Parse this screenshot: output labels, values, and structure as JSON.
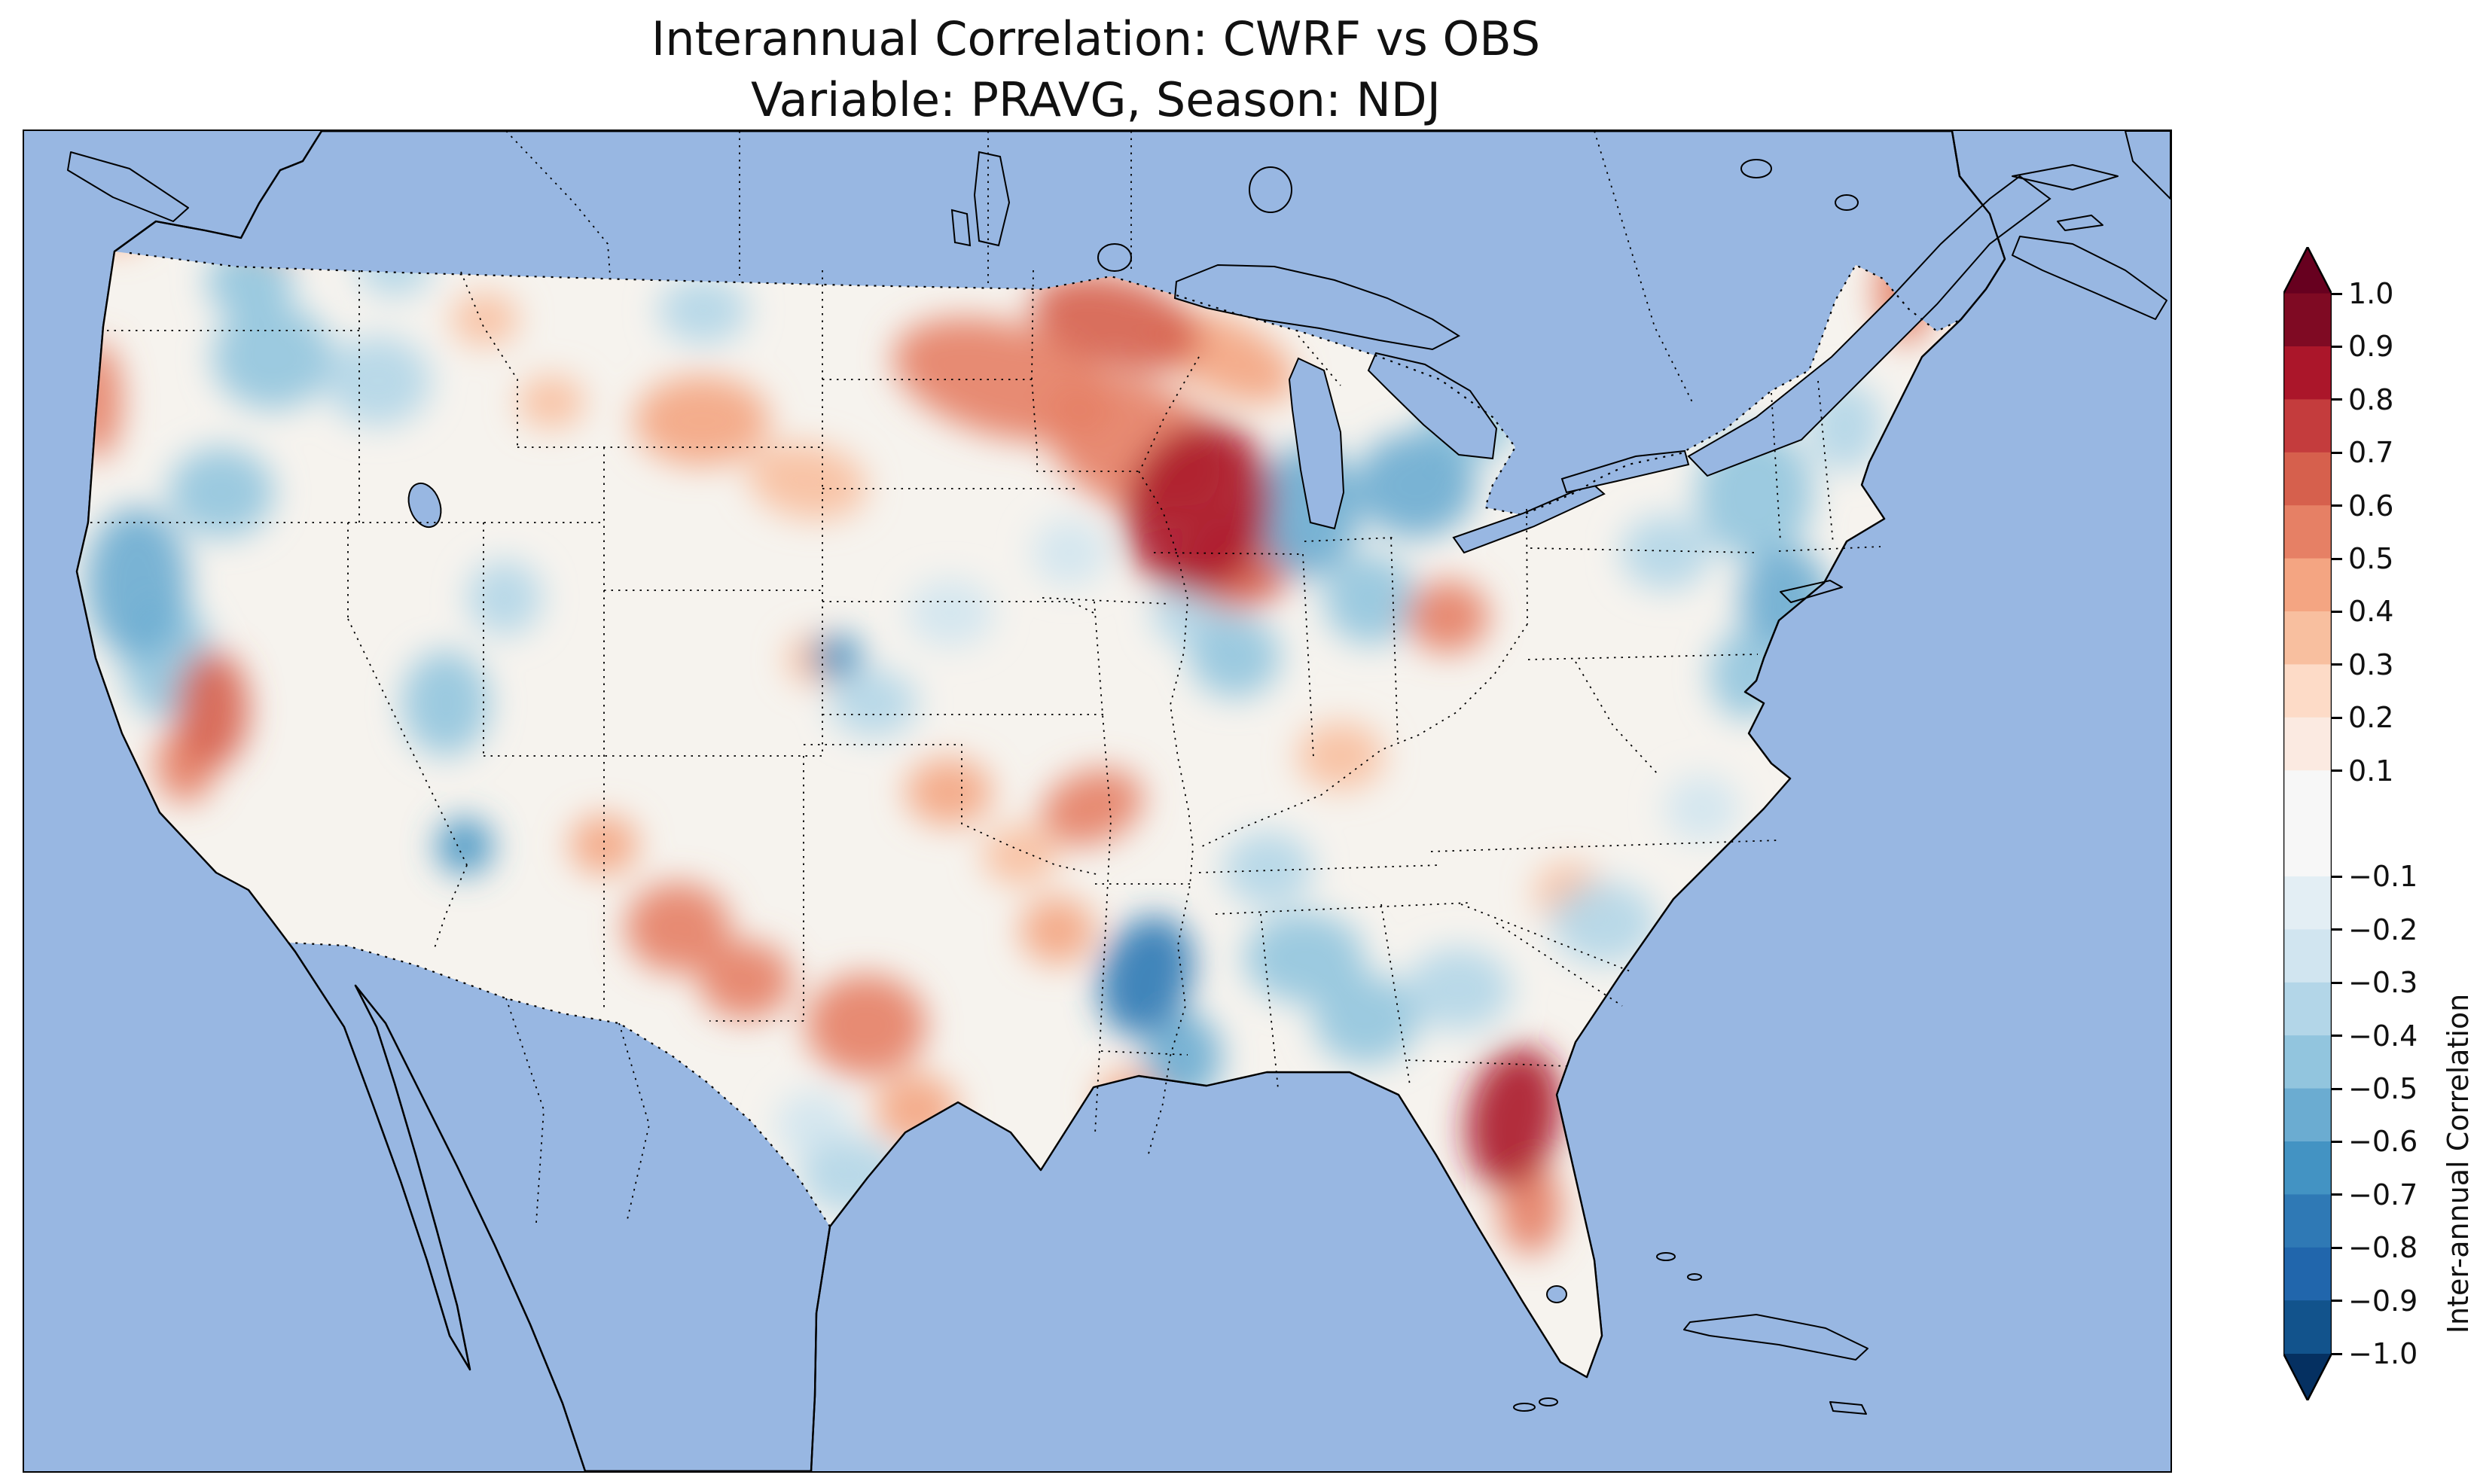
{
  "title": {
    "line1": "Interannual Correlation: CWRF vs OBS",
    "line2": "Variable: PRAVG, Season: NDJ"
  },
  "map": {
    "ocean_color": "#98b7e2",
    "land_color": "#f0efdb",
    "field_base_color": "#f6f3ee",
    "border_style": "dotted black (state / national boundaries)",
    "coastline_style": "solid black"
  },
  "colorbar": {
    "label": "Inter-annual Correlation",
    "ticks": [
      "1.0",
      "0.9",
      "0.8",
      "0.7",
      "0.6",
      "0.5",
      "0.4",
      "0.3",
      "0.2",
      "0.1",
      "−0.1",
      "−0.2",
      "−0.3",
      "−0.4",
      "−0.5",
      "−0.6",
      "−0.7",
      "−0.8",
      "−0.9",
      "−1.0"
    ],
    "tick_values": [
      1.0,
      0.9,
      0.8,
      0.7,
      0.6,
      0.5,
      0.4,
      0.3,
      0.2,
      0.1,
      -0.1,
      -0.2,
      -0.3,
      -0.4,
      -0.5,
      -0.6,
      -0.7,
      -0.8,
      -0.9,
      -1.0
    ],
    "extend_over_color": "#67001f",
    "extend_under_color": "#053061",
    "bands": [
      {
        "lo": 0.9,
        "hi": 1.0,
        "color": "#7f0a23"
      },
      {
        "lo": 0.8,
        "hi": 0.9,
        "color": "#ab162a"
      },
      {
        "lo": 0.7,
        "hi": 0.8,
        "color": "#c43c3d"
      },
      {
        "lo": 0.6,
        "hi": 0.7,
        "color": "#d6604d"
      },
      {
        "lo": 0.5,
        "hi": 0.6,
        "color": "#e68065"
      },
      {
        "lo": 0.4,
        "hi": 0.5,
        "color": "#f4a582"
      },
      {
        "lo": 0.3,
        "hi": 0.4,
        "color": "#f8bf9f"
      },
      {
        "lo": 0.2,
        "hi": 0.3,
        "color": "#fddbc7"
      },
      {
        "lo": 0.1,
        "hi": 0.2,
        "color": "#fbeae1"
      },
      {
        "lo": -0.1,
        "hi": 0.1,
        "color": "#f7f7f7"
      },
      {
        "lo": -0.2,
        "hi": -0.1,
        "color": "#e3eef4"
      },
      {
        "lo": -0.3,
        "hi": -0.2,
        "color": "#d1e5f0"
      },
      {
        "lo": -0.4,
        "hi": -0.3,
        "color": "#b3d6e8"
      },
      {
        "lo": -0.5,
        "hi": -0.4,
        "color": "#92c5de"
      },
      {
        "lo": -0.6,
        "hi": -0.5,
        "color": "#6bacd1"
      },
      {
        "lo": -0.7,
        "hi": -0.6,
        "color": "#4393c3"
      },
      {
        "lo": -0.8,
        "hi": -0.7,
        "color": "#2f79b5"
      },
      {
        "lo": -0.9,
        "hi": -0.8,
        "color": "#2166ac"
      },
      {
        "lo": -1.0,
        "hi": -0.9,
        "color": "#12538c"
      }
    ]
  },
  "chart_data": {
    "type": "heatmap",
    "title": "Interannual Correlation: CWRF vs OBS",
    "subtitle": "Variable: PRAVG, Season: NDJ",
    "comparison": "CWRF model vs OBS observations",
    "variable": "PRAVG",
    "season": "NDJ",
    "region": "Continental United States (CONUS), with Canada/Mexico masked out (beige land)",
    "colorbar_label": "Inter-annual Correlation",
    "value_range": [
      -1.0,
      1.0
    ],
    "colormap": "RdBu_r diverging: red = positive correlation, blue = negative, white near zero",
    "regions_summary": [
      "Strong positive (0.6 to 0.9) over Iowa / northern Illinois / southern Wisconsin",
      "Positive band (0.4 to 0.6) from North Dakota and northern Minnesota toward Lake Superior",
      "Strong positive (0.6 to 0.9) over the Florida peninsula",
      "Positive (0.4 to 0.6) over New Mexico, west Texas and the Four Corners; scattered positive over Kansas, Oklahoma and Missouri",
      "Positive streaks along the Oregon/Washington coast, Sierra Nevada and Maine",
      "Strong negative (-0.6 to -0.8) over Arkansas / Mississippi valley; small strong-negative spots in central Kansas and southern Utah",
      "Negative (-0.4 to -0.6) over Michigan, the Wisconsin-Illinois border, Tennessee-Alabama and Georgia",
      "Negative (-0.4 to -0.6) along the Northeast coast (New York, New England)",
      "Negative (-0.4 to -0.6) over coastal northern California, central Oregon, Idaho and Utah",
      "Near zero (-0.1 to 0.1) over much of the central Plains and interior Southeast"
    ],
    "blob_format": [
      "x_px",
      "y_px",
      "rx_px",
      "ry_px",
      "rotation_deg",
      "corr"
    ],
    "blob_space": "map panel coordinates, 2850 x 1780",
    "blobs": [
      [
        1560,
        500,
        95,
        115,
        20,
        0.85
      ],
      [
        1480,
        420,
        130,
        85,
        25,
        0.55
      ],
      [
        1610,
        570,
        75,
        65,
        0,
        0.6
      ],
      [
        1300,
        330,
        150,
        75,
        15,
        0.5
      ],
      [
        1450,
        255,
        115,
        60,
        15,
        0.6
      ],
      [
        1595,
        300,
        100,
        50,
        25,
        0.45
      ],
      [
        900,
        385,
        90,
        60,
        0,
        0.45
      ],
      [
        1040,
        465,
        80,
        50,
        10,
        0.35
      ],
      [
        1890,
        645,
        55,
        48,
        0,
        0.55
      ],
      [
        1978,
        1310,
        62,
        95,
        12,
        0.8
      ],
      [
        2000,
        1430,
        42,
        62,
        0,
        0.55
      ],
      [
        868,
        1058,
        70,
        60,
        0,
        0.55
      ],
      [
        958,
        1128,
        62,
        52,
        0,
        0.5
      ],
      [
        1118,
        1188,
        80,
        68,
        0,
        0.55
      ],
      [
        1185,
        1300,
        55,
        48,
        0,
        0.45
      ],
      [
        1228,
        878,
        58,
        45,
        0,
        0.4
      ],
      [
        1322,
        962,
        50,
        40,
        0,
        0.35
      ],
      [
        1418,
        898,
        70,
        48,
        -20,
        0.5
      ],
      [
        1372,
        1062,
        50,
        45,
        0,
        0.45
      ],
      [
        250,
        768,
        48,
        78,
        0,
        0.6
      ],
      [
        214,
        842,
        40,
        50,
        0,
        0.5
      ],
      [
        96,
        358,
        34,
        78,
        0,
        0.5
      ],
      [
        122,
        120,
        45,
        35,
        0,
        0.45
      ],
      [
        322,
        140,
        50,
        35,
        0,
        0.35
      ],
      [
        2498,
        212,
        40,
        70,
        0,
        0.5
      ],
      [
        2052,
        1012,
        46,
        40,
        0,
        0.35
      ],
      [
        1748,
        830,
        58,
        45,
        0,
        0.35
      ],
      [
        612,
        250,
        45,
        35,
        0,
        0.35
      ],
      [
        770,
        948,
        46,
        40,
        0,
        0.4
      ],
      [
        1470,
        1288,
        46,
        40,
        0,
        0.4
      ],
      [
        1052,
        702,
        40,
        34,
        0,
        0.3
      ],
      [
        700,
        360,
        45,
        35,
        0,
        0.3
      ],
      [
        1490,
        1122,
        60,
        82,
        20,
        -0.75
      ],
      [
        1538,
        1230,
        52,
        60,
        0,
        -0.55
      ],
      [
        1700,
        1098,
        80,
        60,
        0,
        -0.45
      ],
      [
        1782,
        1180,
        70,
        60,
        0,
        -0.5
      ],
      [
        1905,
        1140,
        70,
        55,
        0,
        -0.35
      ],
      [
        2098,
        1052,
        70,
        55,
        0,
        -0.35
      ],
      [
        1652,
        980,
        60,
        50,
        0,
        -0.4
      ],
      [
        1705,
        505,
        68,
        88,
        0,
        -0.6
      ],
      [
        1848,
        470,
        80,
        70,
        0,
        -0.55
      ],
      [
        1788,
        622,
        62,
        60,
        0,
        -0.5
      ],
      [
        1918,
        390,
        60,
        50,
        0,
        -0.45
      ],
      [
        2298,
        482,
        78,
        88,
        0,
        -0.5
      ],
      [
        2338,
        622,
        60,
        70,
        0,
        -0.55
      ],
      [
        2288,
        722,
        50,
        60,
        0,
        -0.5
      ],
      [
        2180,
        560,
        60,
        50,
        0,
        -0.4
      ],
      [
        2418,
        392,
        50,
        60,
        0,
        -0.35
      ],
      [
        150,
        600,
        68,
        100,
        0,
        -0.55
      ],
      [
        190,
        702,
        60,
        80,
        0,
        -0.5
      ],
      [
        262,
        480,
        70,
        60,
        0,
        -0.45
      ],
      [
        330,
        300,
        80,
        70,
        0,
        -0.5
      ],
      [
        300,
        200,
        58,
        50,
        0,
        -0.45
      ],
      [
        470,
        332,
        70,
        60,
        0,
        -0.4
      ],
      [
        560,
        760,
        58,
        70,
        0,
        -0.45
      ],
      [
        585,
        950,
        38,
        38,
        0,
        -0.7
      ],
      [
        638,
        620,
        50,
        50,
        0,
        -0.35
      ],
      [
        1080,
        698,
        34,
        30,
        0,
        -0.65
      ],
      [
        1128,
        760,
        58,
        45,
        0,
        -0.35
      ],
      [
        1230,
        640,
        58,
        45,
        0,
        -0.3
      ],
      [
        1100,
        1388,
        70,
        50,
        0,
        -0.35
      ],
      [
        1048,
        1320,
        50,
        45,
        0,
        -0.3
      ],
      [
        1608,
        698,
        60,
        55,
        0,
        -0.5
      ],
      [
        1548,
        640,
        50,
        45,
        0,
        -0.4
      ],
      [
        2228,
        900,
        50,
        45,
        0,
        -0.3
      ],
      [
        902,
        238,
        60,
        45,
        0,
        -0.35
      ],
      [
        1388,
        560,
        50,
        45,
        0,
        -0.3
      ],
      [
        492,
        180,
        50,
        40,
        0,
        -0.4
      ]
    ]
  }
}
